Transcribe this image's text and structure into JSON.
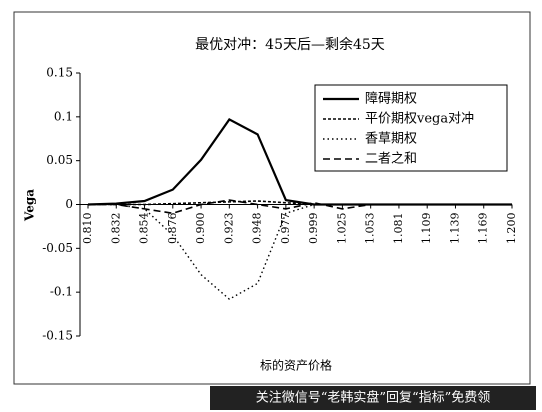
{
  "chart_data": {
    "type": "line",
    "title": "最优对冲：45天后—剩余45天",
    "x_label": "标的资产价格",
    "y_label": "Vega",
    "categories": [
      "0.810",
      "0.832",
      "0.854",
      "0.876",
      "0.900",
      "0.923",
      "0.948",
      "0.977",
      "0.999",
      "1.025",
      "1.053",
      "1.081",
      "1.109",
      "1.139",
      "1.169",
      "1.200"
    ],
    "series": [
      {
        "name": "障碍期权",
        "color": "#000000",
        "dash": "solid",
        "values": [
          0,
          0.001,
          0.004,
          0.017,
          0.051,
          0.097,
          0.08,
          0.005,
          0,
          0,
          0,
          0,
          0,
          0,
          0,
          0
        ]
      },
      {
        "name": "平价期权vega对冲",
        "color": "#000000",
        "dash": "dotted-short",
        "values": [
          0,
          0,
          0,
          0.001,
          0.002,
          0.003,
          0.004,
          0.002,
          0,
          0,
          0,
          0,
          0,
          0,
          0,
          0
        ]
      },
      {
        "name": "香草期权",
        "color": "#000000",
        "dash": "dotted",
        "values": [
          0,
          0,
          -0.005,
          -0.035,
          -0.08,
          -0.108,
          -0.09,
          -0.01,
          0,
          0,
          0,
          0,
          0,
          0,
          0,
          0
        ]
      },
      {
        "name": "二者之和",
        "color": "#000000",
        "dash": "dashed",
        "values": [
          0,
          0,
          -0.005,
          -0.01,
          0,
          0.005,
          0,
          -0.005,
          0.002,
          -0.005,
          0,
          0,
          0,
          0,
          0,
          0
        ]
      }
    ],
    "ylim": [
      -0.15,
      0.15
    ],
    "yticks": [
      0.15,
      0.1,
      0.05,
      0,
      -0.05,
      -0.1,
      -0.15
    ],
    "grid": false,
    "legend": "top-right"
  },
  "watermark": "关注微信号“老韩实盘”回复“指标”免费领"
}
